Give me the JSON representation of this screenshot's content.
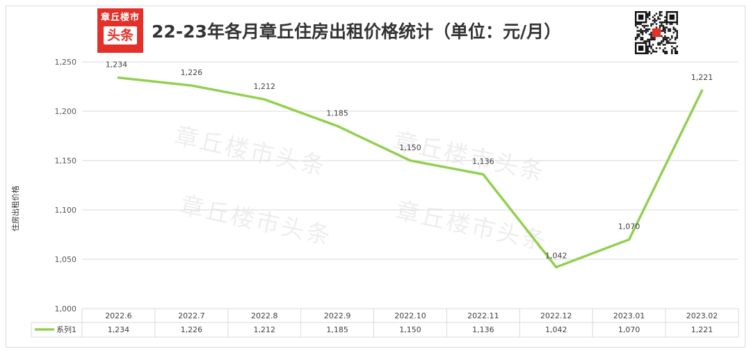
{
  "logo": {
    "line1": "章丘楼市",
    "line2": "头条"
  },
  "title": "22-23年各月章丘住房出租价格统计（单位：元/月）",
  "watermark": "章丘楼市头条",
  "colors": {
    "series": "#92d050",
    "logo_bg": "#e3312a",
    "grid": "#d9d9d9"
  },
  "chart_data": {
    "type": "line",
    "title": "22-23年各月章丘住房出租价格统计（单位：元/月）",
    "xlabel": "",
    "ylabel": "住房出租价格",
    "categories": [
      "2022.6",
      "2022.7",
      "2022.8",
      "2022.9",
      "2022.10",
      "2022.11",
      "2022.12",
      "2023.01",
      "2023.02"
    ],
    "series": [
      {
        "name": "系列1",
        "values": [
          1234,
          1226,
          1212,
          1185,
          1150,
          1136,
          1042,
          1070,
          1221
        ]
      }
    ],
    "ylim": [
      1000,
      1250
    ],
    "yticks": [
      1000,
      1050,
      1100,
      1150,
      1200,
      1250
    ],
    "data_table": true,
    "grid": true,
    "legend": "data-table"
  }
}
